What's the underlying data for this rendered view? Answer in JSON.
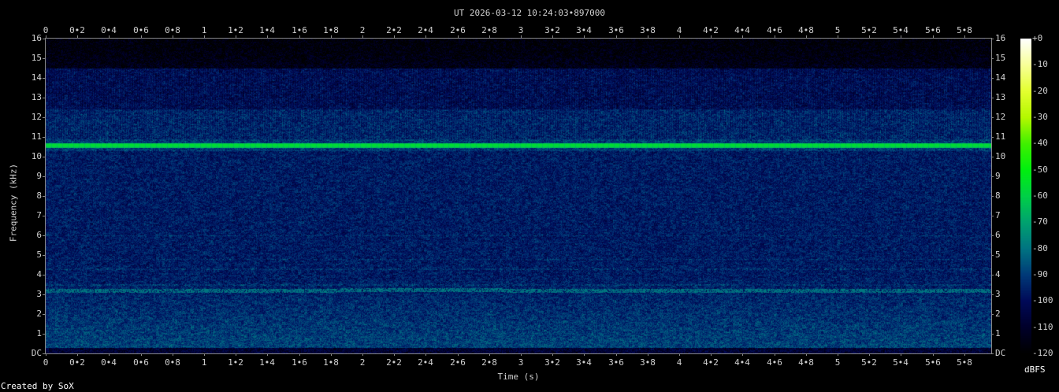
{
  "title": "UT 2026-03-12 10:24:03•897000",
  "footer": "Created by SoX",
  "chart_data": {
    "type": "heatmap",
    "title": "UT 2026-03-12 10:24:03•897000",
    "xlabel": "Time (s)",
    "ylabel": "Frequency (kHz)",
    "colorbar_label": "dBFS",
    "xlim": [
      0,
      5.97
    ],
    "ylim": [
      0,
      16
    ],
    "zlim": [
      -120,
      0
    ],
    "x_ticks": [
      "0",
      "0•2",
      "0•4",
      "0•6",
      "0•8",
      "1",
      "1•2",
      "1•4",
      "1•6",
      "1•8",
      "2",
      "2•2",
      "2•4",
      "2•6",
      "2•8",
      "3",
      "3•2",
      "3•4",
      "3•6",
      "3•8",
      "4",
      "4•2",
      "4•4",
      "4•6",
      "4•8",
      "5",
      "5•2",
      "5•4",
      "5•6",
      "5•8"
    ],
    "x_tick_values": [
      0,
      0.2,
      0.4,
      0.6,
      0.8,
      1,
      1.2,
      1.4,
      1.6,
      1.8,
      2,
      2.2,
      2.4,
      2.6,
      2.8,
      3,
      3.2,
      3.4,
      3.6,
      3.8,
      4,
      4.2,
      4.4,
      4.6,
      4.8,
      5,
      5.2,
      5.4,
      5.6,
      5.8
    ],
    "y_ticks": [
      "DC",
      "1",
      "2",
      "3",
      "4",
      "5",
      "6",
      "7",
      "8",
      "9",
      "10",
      "11",
      "12",
      "13",
      "14",
      "15",
      "16"
    ],
    "y_tick_values": [
      0,
      1,
      2,
      3,
      4,
      5,
      6,
      7,
      8,
      9,
      10,
      11,
      12,
      13,
      14,
      15,
      16
    ],
    "colorbar_ticks": [
      "+0",
      "-10",
      "-20",
      "-30",
      "-40",
      "-50",
      "-60",
      "-70",
      "-80",
      "-90",
      "-100",
      "-110",
      "-120"
    ],
    "colorbar_tick_values": [
      0,
      -10,
      -20,
      -30,
      -40,
      -50,
      -60,
      -70,
      -80,
      -90,
      -100,
      -110,
      -120
    ],
    "features": [
      {
        "description": "steady tone",
        "freq_khz": 10.6,
        "level_dbfs": -55
      },
      {
        "description": "narrow band",
        "freq_khz": 3.2,
        "level_dbfs": -80
      },
      {
        "description": "noise floor 0-10 kHz",
        "level_dbfs": -95
      },
      {
        "description": "noise floor above 14.5 kHz",
        "level_dbfs": -115
      }
    ],
    "colormap": [
      {
        "db": -120,
        "color": "#000000"
      },
      {
        "db": -110,
        "color": "#00002a"
      },
      {
        "db": -100,
        "color": "#000a58"
      },
      {
        "db": -90,
        "color": "#003a78"
      },
      {
        "db": -80,
        "color": "#007482"
      },
      {
        "db": -70,
        "color": "#00a270"
      },
      {
        "db": -60,
        "color": "#00d048"
      },
      {
        "db": -50,
        "color": "#00f010"
      },
      {
        "db": -40,
        "color": "#40f000"
      },
      {
        "db": -30,
        "color": "#b4f800"
      },
      {
        "db": -20,
        "color": "#e4ff30"
      },
      {
        "db": -10,
        "color": "#f8ff98"
      },
      {
        "db": 0,
        "color": "#ffffff"
      }
    ]
  }
}
